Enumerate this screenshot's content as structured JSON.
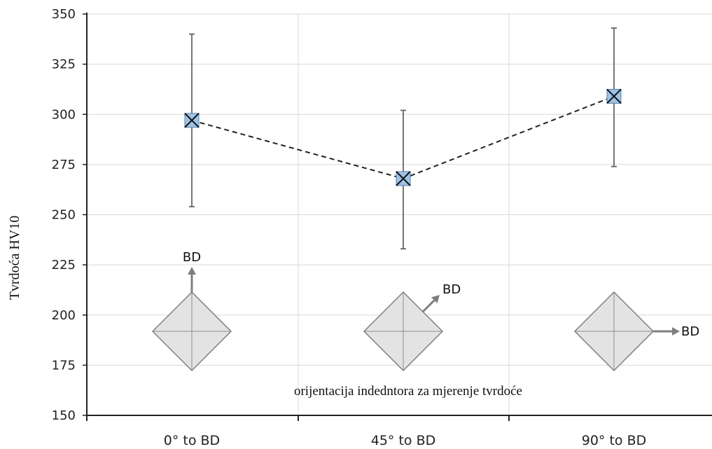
{
  "chart_data": {
    "type": "line",
    "ylabel": "Tvrdoća HV10",
    "xlabel": "",
    "categories": [
      "0° to BD",
      "45° to BD",
      "90° to BD"
    ],
    "series": [
      {
        "values": [
          297,
          268,
          309
        ],
        "error_low": [
          254,
          233,
          274
        ],
        "error_high": [
          340,
          302,
          343
        ],
        "line_style": "dashed",
        "marker": "x-square",
        "marker_color": "#9dc3e6"
      }
    ],
    "ylim": [
      150,
      350
    ],
    "yticks": [
      150,
      175,
      200,
      225,
      250,
      275,
      300,
      325,
      350
    ],
    "grid": true,
    "annotation": "orijentacija indedntora za mjerenje tvrdoće",
    "indenter_labels": [
      "BD",
      "BD",
      "BD"
    ],
    "indenter_arrow_directions": [
      "up",
      "up-right",
      "right"
    ]
  }
}
